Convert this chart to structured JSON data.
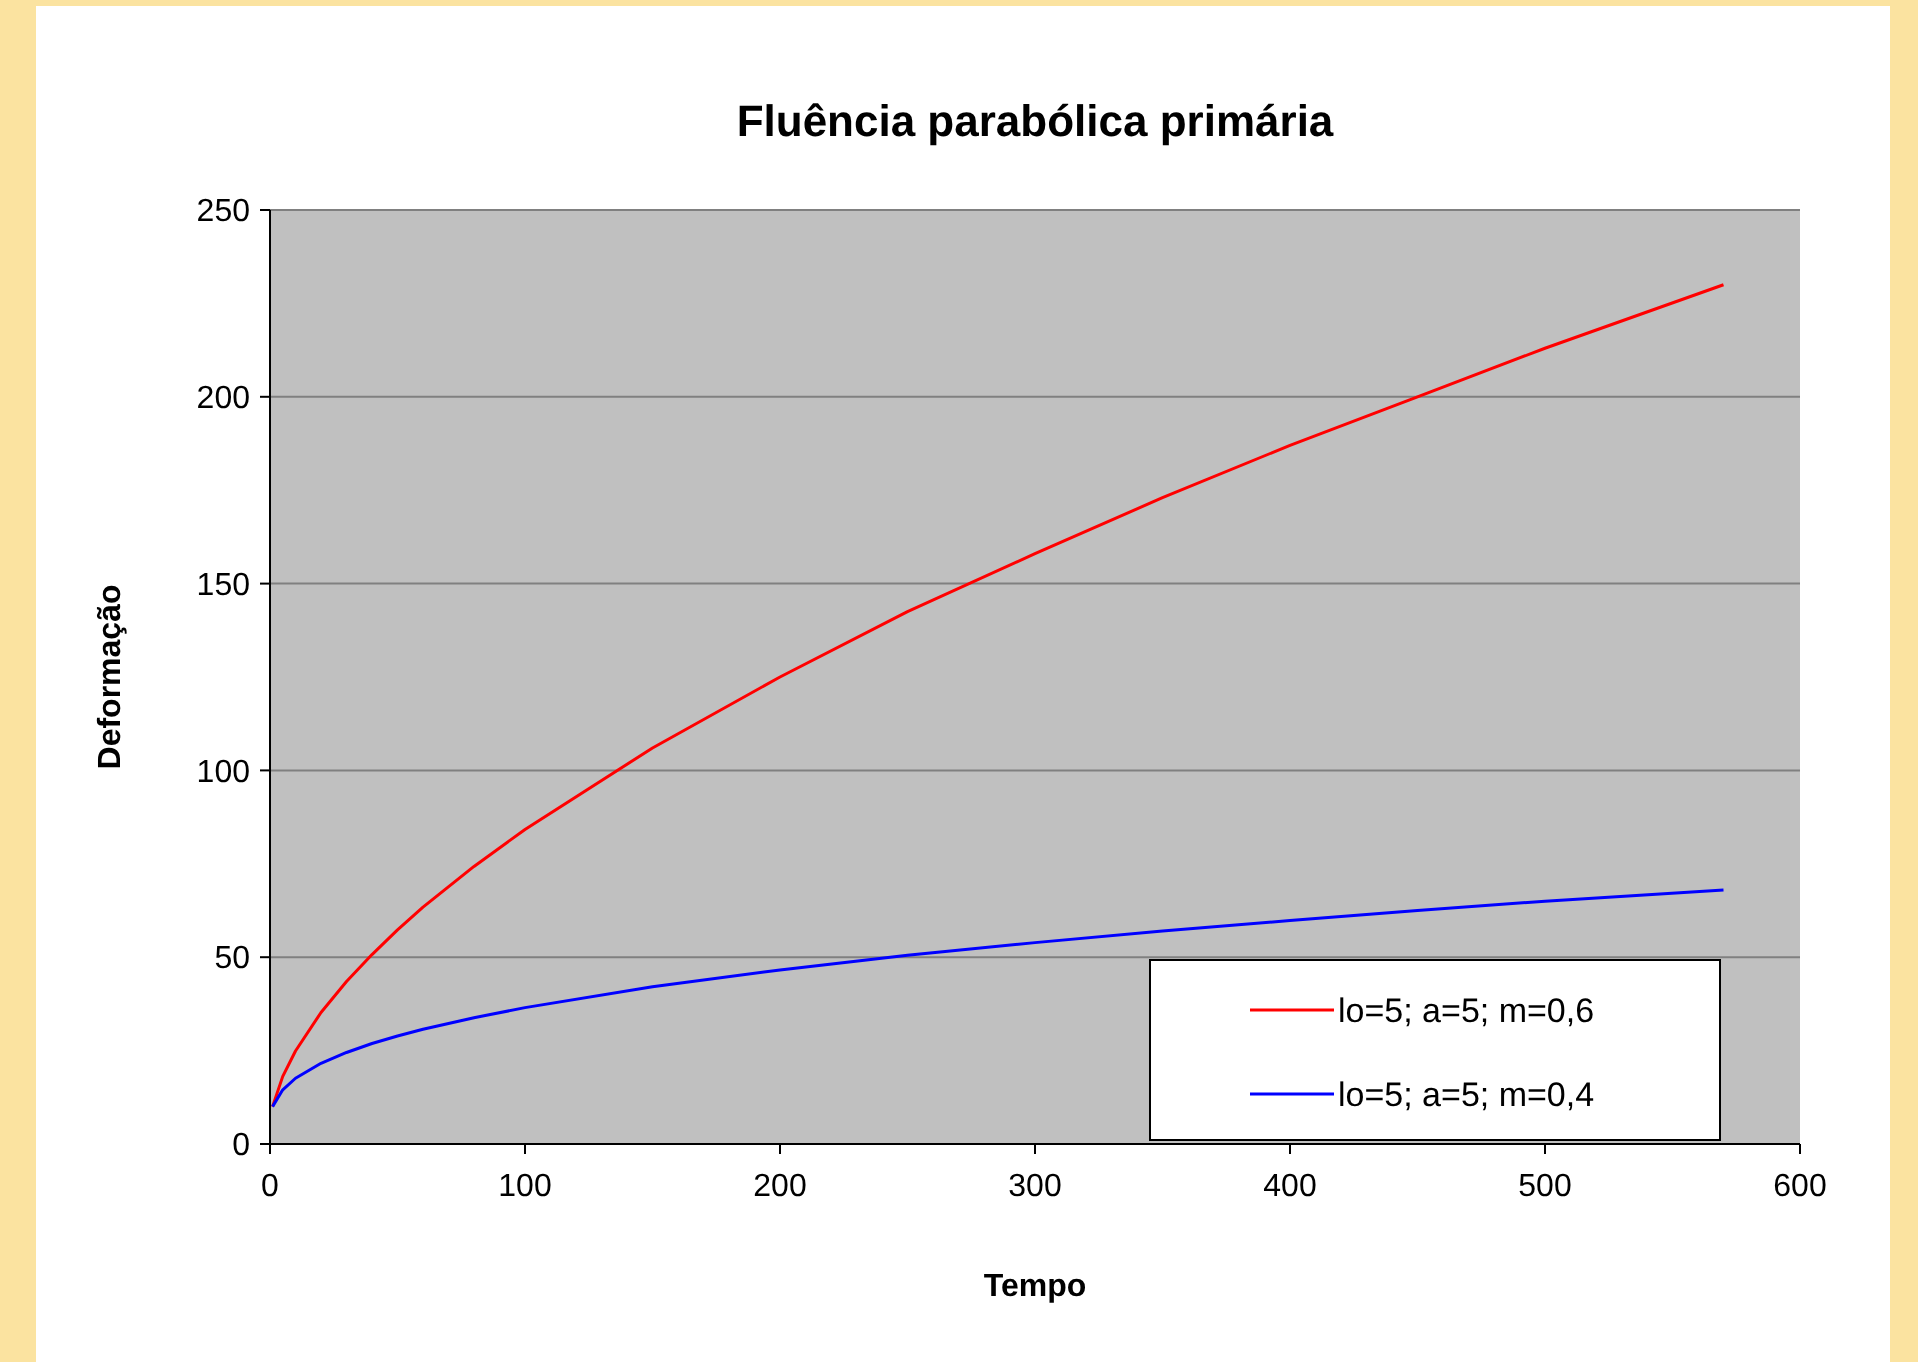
{
  "chart_data": {
    "type": "line",
    "title": "Fluência parabólica primária",
    "xlabel": "Tempo",
    "ylabel": "Deformação",
    "x": [
      1,
      5,
      10,
      20,
      30,
      40,
      50,
      60,
      80,
      100,
      150,
      200,
      250,
      300,
      350,
      400,
      450,
      500,
      570
    ],
    "series": [
      {
        "name": "lo=5; a=5; m=0,6",
        "color": "#ff0000",
        "values": [
          10,
          18.1,
          24.9,
          35.2,
          43.5,
          50.7,
          57.3,
          63.4,
          74.3,
          84.2,
          106,
          125,
          142.5,
          158,
          173,
          187,
          200,
          213,
          230
        ]
      },
      {
        "name": "lo=5; a=5; m=0,4",
        "color": "#0000ff",
        "values": [
          10,
          14.5,
          17.6,
          21.6,
          24.5,
          26.9,
          28.9,
          30.7,
          33.8,
          36.5,
          42.1,
          46.6,
          50.5,
          53.9,
          57,
          59.8,
          62.5,
          65,
          68
        ]
      }
    ],
    "xlim": [
      0,
      600
    ],
    "xticks": [
      0,
      100,
      200,
      300,
      400,
      500,
      600
    ],
    "ylim": [
      0,
      250
    ],
    "yticks": [
      0,
      50,
      100,
      150,
      200,
      250
    ],
    "grid": "y",
    "legend": "bottom right",
    "marker": "none",
    "line_style": "solid"
  }
}
